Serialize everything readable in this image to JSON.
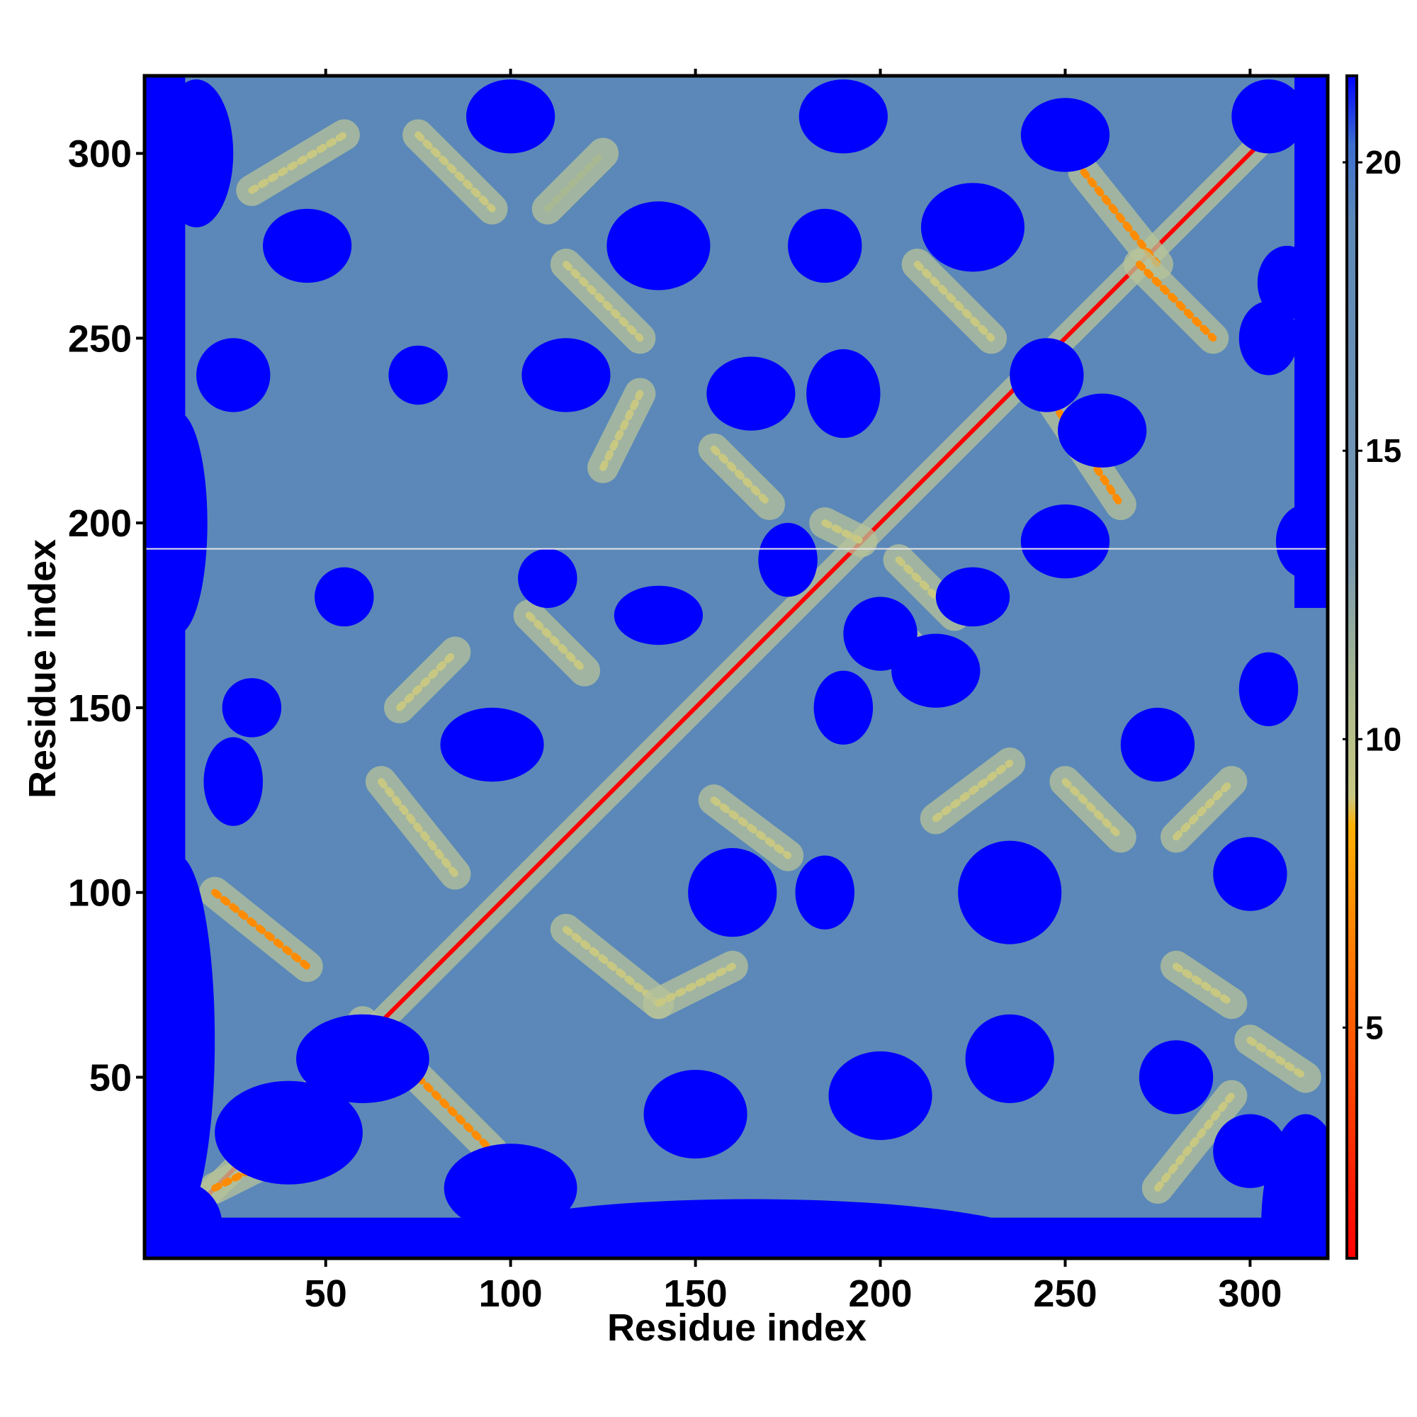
{
  "chart_data": {
    "type": "heatmap",
    "title": "",
    "xlabel": "Residue index",
    "ylabel": "Residue index",
    "xlim": [
      1,
      321
    ],
    "ylim": [
      1,
      321
    ],
    "x_ticks": [
      50,
      100,
      150,
      200,
      250,
      300
    ],
    "y_ticks": [
      50,
      100,
      150,
      200,
      250,
      300
    ],
    "colorbar": {
      "range": [
        1,
        21.5
      ],
      "ticks": [
        5,
        10,
        15,
        20
      ],
      "stops": [
        {
          "value": 1,
          "color": "#ff0000"
        },
        {
          "value": 4,
          "color": "#ff4400"
        },
        {
          "value": 7,
          "color": "#ff8c00"
        },
        {
          "value": 8.5,
          "color": "#ffb000"
        },
        {
          "value": 9,
          "color": "#c8c882"
        },
        {
          "value": 11,
          "color": "#a8b890"
        },
        {
          "value": 13,
          "color": "#7a9ab0"
        },
        {
          "value": 19,
          "color": "#5b88b8"
        },
        {
          "value": 20.3,
          "color": "#3c6fd0"
        },
        {
          "value": 21.5,
          "color": "#0000ff"
        }
      ]
    },
    "description_colors": {
      "far": "#0000ff",
      "mid": "#5b88b8",
      "near": "#ff0000"
    },
    "bands": [
      {
        "points": [
          [
            1,
            1
          ],
          [
            321,
            321
          ]
        ],
        "width": 1.2,
        "level": 1.5
      },
      {
        "points": [
          [
            30,
            290
          ],
          [
            55,
            305
          ]
        ],
        "width": 2,
        "level": 9
      },
      {
        "points": [
          [
            75,
            305
          ],
          [
            95,
            285
          ]
        ],
        "width": 2,
        "level": 9
      },
      {
        "points": [
          [
            110,
            285
          ],
          [
            125,
            300
          ]
        ],
        "width": 2,
        "level": 11
      },
      {
        "points": [
          [
            115,
            270
          ],
          [
            135,
            250
          ]
        ],
        "width": 2,
        "level": 9
      },
      {
        "points": [
          [
            125,
            215
          ],
          [
            135,
            235
          ]
        ],
        "width": 2,
        "level": 9
      },
      {
        "points": [
          [
            155,
            220
          ],
          [
            170,
            205
          ]
        ],
        "width": 2,
        "level": 9
      },
      {
        "points": [
          [
            185,
            200
          ],
          [
            195,
            195
          ]
        ],
        "width": 2,
        "level": 9
      },
      {
        "points": [
          [
            70,
            150
          ],
          [
            85,
            165
          ]
        ],
        "width": 2,
        "level": 9
      },
      {
        "points": [
          [
            65,
            130
          ],
          [
            85,
            105
          ]
        ],
        "width": 2,
        "level": 9
      },
      {
        "points": [
          [
            105,
            175
          ],
          [
            120,
            160
          ]
        ],
        "width": 2,
        "level": 9
      },
      {
        "points": [
          [
            115,
            90
          ],
          [
            140,
            70
          ]
        ],
        "width": 2,
        "level": 9
      },
      {
        "points": [
          [
            140,
            70
          ],
          [
            160,
            80
          ]
        ],
        "width": 2,
        "level": 9
      },
      {
        "points": [
          [
            155,
            125
          ],
          [
            175,
            110
          ]
        ],
        "width": 2,
        "level": 9
      },
      {
        "points": [
          [
            200,
            175
          ],
          [
            215,
            160
          ]
        ],
        "width": 2,
        "level": 9
      },
      {
        "points": [
          [
            215,
            120
          ],
          [
            235,
            135
          ]
        ],
        "width": 2,
        "level": 9
      },
      {
        "points": [
          [
            250,
            130
          ],
          [
            265,
            115
          ]
        ],
        "width": 2,
        "level": 9
      },
      {
        "points": [
          [
            280,
            115
          ],
          [
            295,
            130
          ]
        ],
        "width": 2,
        "level": 9
      },
      {
        "points": [
          [
            275,
            20
          ],
          [
            295,
            45
          ]
        ],
        "width": 2,
        "level": 9
      },
      {
        "points": [
          [
            300,
            60
          ],
          [
            315,
            50
          ]
        ],
        "width": 2,
        "level": 9
      },
      {
        "points": [
          [
            280,
            80
          ],
          [
            295,
            70
          ]
        ],
        "width": 2,
        "level": 9
      },
      {
        "points": [
          [
            20,
            100
          ],
          [
            45,
            80
          ]
        ],
        "width": 2,
        "level": 8
      },
      {
        "points": [
          [
            60,
            65
          ],
          [
            95,
            30
          ]
        ],
        "width": 2,
        "level": 8
      },
      {
        "points": [
          [
            20,
            20
          ],
          [
            40,
            30
          ]
        ],
        "width": 2,
        "level": 8
      },
      {
        "points": [
          [
            95,
            25
          ],
          [
            105,
            15
          ]
        ],
        "width": 2,
        "level": 8
      },
      {
        "points": [
          [
            255,
            295
          ],
          [
            275,
            270
          ]
        ],
        "width": 2,
        "level": 8
      },
      {
        "points": [
          [
            270,
            270
          ],
          [
            290,
            250
          ]
        ],
        "width": 2,
        "level": 8
      },
      {
        "points": [
          [
            245,
            235
          ],
          [
            265,
            205
          ]
        ],
        "width": 2,
        "level": 8
      },
      {
        "points": [
          [
            210,
            270
          ],
          [
            230,
            250
          ]
        ],
        "width": 2,
        "level": 9
      },
      {
        "points": [
          [
            205,
            190
          ],
          [
            220,
            175
          ]
        ],
        "width": 2,
        "level": 10
      }
    ],
    "voids": [
      [
        40,
        35,
        20,
        14
      ],
      [
        60,
        55,
        18,
        12
      ],
      [
        100,
        20,
        18,
        12
      ],
      [
        150,
        40,
        14,
        12
      ],
      [
        200,
        45,
        14,
        12
      ],
      [
        235,
        55,
        12,
        12
      ],
      [
        280,
        50,
        10,
        10
      ],
      [
        300,
        30,
        10,
        10
      ],
      [
        25,
        130,
        8,
        12
      ],
      [
        95,
        140,
        14,
        10
      ],
      [
        160,
        100,
        12,
        12
      ],
      [
        185,
        100,
        8,
        10
      ],
      [
        190,
        150,
        8,
        10
      ],
      [
        215,
        160,
        12,
        10
      ],
      [
        235,
        100,
        14,
        14
      ],
      [
        275,
        140,
        10,
        10
      ],
      [
        300,
        105,
        10,
        10
      ],
      [
        305,
        155,
        8,
        10
      ],
      [
        315,
        195,
        8,
        10
      ],
      [
        250,
        195,
        12,
        10
      ],
      [
        225,
        180,
        10,
        8
      ],
      [
        200,
        170,
        10,
        10
      ],
      [
        175,
        190,
        8,
        10
      ],
      [
        140,
        175,
        12,
        8
      ],
      [
        110,
        185,
        8,
        8
      ],
      [
        55,
        180,
        8,
        8
      ],
      [
        30,
        150,
        8,
        8
      ],
      [
        25,
        240,
        10,
        10
      ],
      [
        75,
        240,
        8,
        8
      ],
      [
        115,
        240,
        12,
        10
      ],
      [
        165,
        235,
        12,
        10
      ],
      [
        190,
        235,
        10,
        12
      ],
      [
        245,
        240,
        10,
        10
      ],
      [
        260,
        225,
        12,
        10
      ],
      [
        305,
        250,
        8,
        10
      ],
      [
        310,
        265,
        8,
        10
      ],
      [
        45,
        275,
        12,
        10
      ],
      [
        140,
        275,
        14,
        12
      ],
      [
        185,
        275,
        10,
        10
      ],
      [
        225,
        280,
        14,
        12
      ],
      [
        100,
        310,
        12,
        10
      ],
      [
        190,
        310,
        12,
        10
      ],
      [
        250,
        305,
        12,
        10
      ],
      [
        305,
        310,
        10,
        10
      ],
      [
        15,
        300,
        10,
        20
      ],
      [
        10,
        60,
        10,
        50
      ],
      [
        10,
        10,
        12,
        12
      ],
      [
        315,
        10,
        12,
        30
      ],
      [
        165,
        5,
        80,
        12
      ],
      [
        10,
        200,
        8,
        30
      ]
    ]
  }
}
